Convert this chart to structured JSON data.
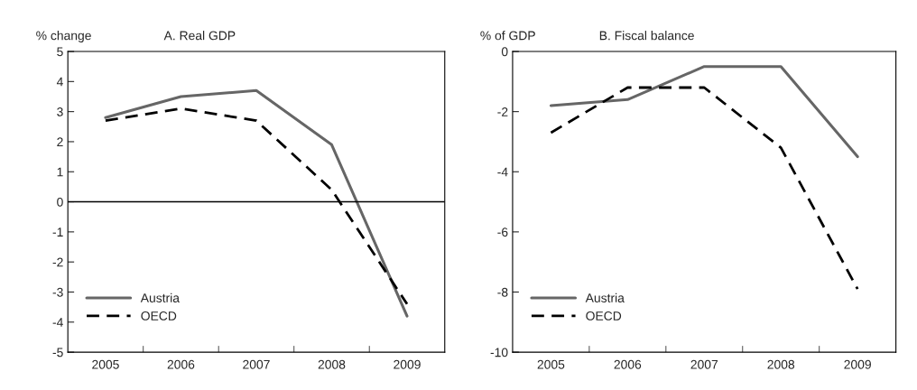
{
  "chart_data": [
    {
      "type": "line",
      "title": "A. Real GDP",
      "ylabel": "% change",
      "categories": [
        "2005",
        "2006",
        "2007",
        "2008",
        "2009"
      ],
      "ylim": [
        -5,
        5
      ],
      "yticks": [
        -5,
        -4,
        -3,
        -2,
        -1,
        0,
        1,
        2,
        3,
        4,
        5
      ],
      "grid": false,
      "legend": "bottom left",
      "marker": "none",
      "ref_lines": [
        {
          "axis": "y",
          "value": 0,
          "color": "#000000",
          "line_style": "solid"
        }
      ],
      "series": [
        {
          "name": "Austria",
          "color": "#666666",
          "line_style": "solid",
          "values": [
            2.8,
            3.5,
            3.7,
            1.9,
            -3.8
          ]
        },
        {
          "name": "OECD",
          "color": "#000000",
          "line_style": "dashed",
          "values": [
            2.7,
            3.1,
            2.7,
            0.4,
            -3.4
          ]
        }
      ]
    },
    {
      "type": "line",
      "title": "B. Fiscal balance",
      "ylabel": "% of GDP",
      "categories": [
        "2005",
        "2006",
        "2007",
        "2008",
        "2009"
      ],
      "ylim": [
        -10,
        0
      ],
      "yticks": [
        -10,
        -8,
        -6,
        -4,
        -2,
        0
      ],
      "grid": false,
      "legend": "bottom left",
      "marker": "none",
      "series": [
        {
          "name": "Austria",
          "color": "#666666",
          "line_style": "solid",
          "values": [
            -1.8,
            -1.6,
            -0.5,
            -0.5,
            -3.5
          ]
        },
        {
          "name": "OECD",
          "color": "#000000",
          "line_style": "dashed",
          "values": [
            -2.7,
            -1.2,
            -1.2,
            -3.2,
            -7.9
          ]
        }
      ]
    }
  ]
}
